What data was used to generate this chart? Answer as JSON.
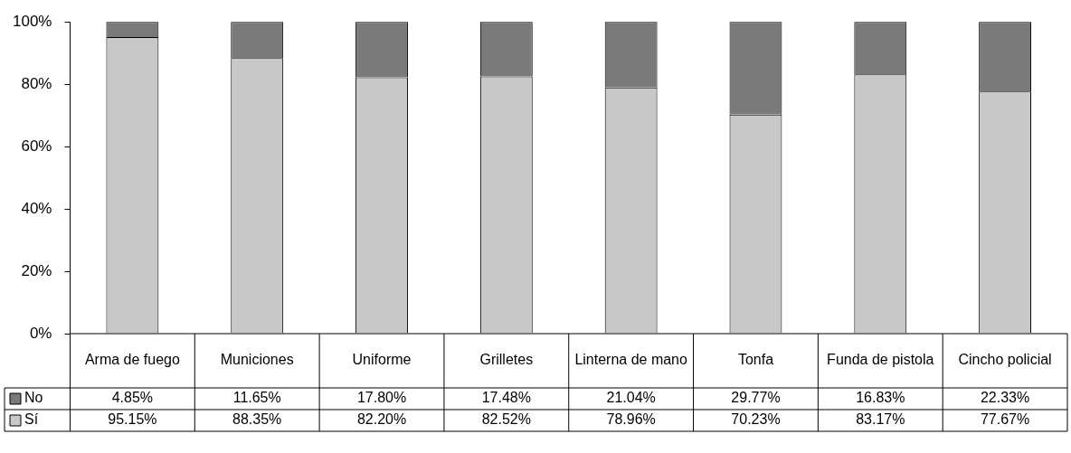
{
  "chart_data": {
    "type": "bar",
    "stacked": true,
    "legend": "bottom",
    "grid": false,
    "categories": [
      "Arma de fuego",
      "Municiones",
      "Uniforme",
      "Grilletes",
      "Linterna de mano",
      "Tonfa",
      "Funda de pistola",
      "Cincho policial"
    ],
    "ylim": [
      0,
      100
    ],
    "yticks": [
      {
        "value": 0,
        "label": "0%"
      },
      {
        "value": 20,
        "label": "20%"
      },
      {
        "value": 40,
        "label": "40%"
      },
      {
        "value": 60,
        "label": "60%"
      },
      {
        "value": 80,
        "label": "80%"
      },
      {
        "value": 100,
        "label": "100%"
      }
    ],
    "series": [
      {
        "name": "Sí",
        "color": "#c8c8c8",
        "values": [
          95.15,
          88.35,
          82.2,
          82.52,
          78.96,
          70.23,
          83.17,
          77.67
        ],
        "value_labels": [
          "95.15%",
          "88.35%",
          "82.20%",
          "82.52%",
          "78.96%",
          "70.23%",
          "83.17%",
          "77.67%"
        ]
      },
      {
        "name": "No",
        "color": "#7a7a7a",
        "values": [
          4.85,
          11.65,
          17.8,
          17.48,
          21.04,
          29.77,
          16.83,
          22.33
        ],
        "value_labels": [
          "4.85%",
          "11.65%",
          "17.80%",
          "17.48%",
          "21.04%",
          "29.77%",
          "16.83%",
          "22.33%"
        ]
      }
    ]
  }
}
